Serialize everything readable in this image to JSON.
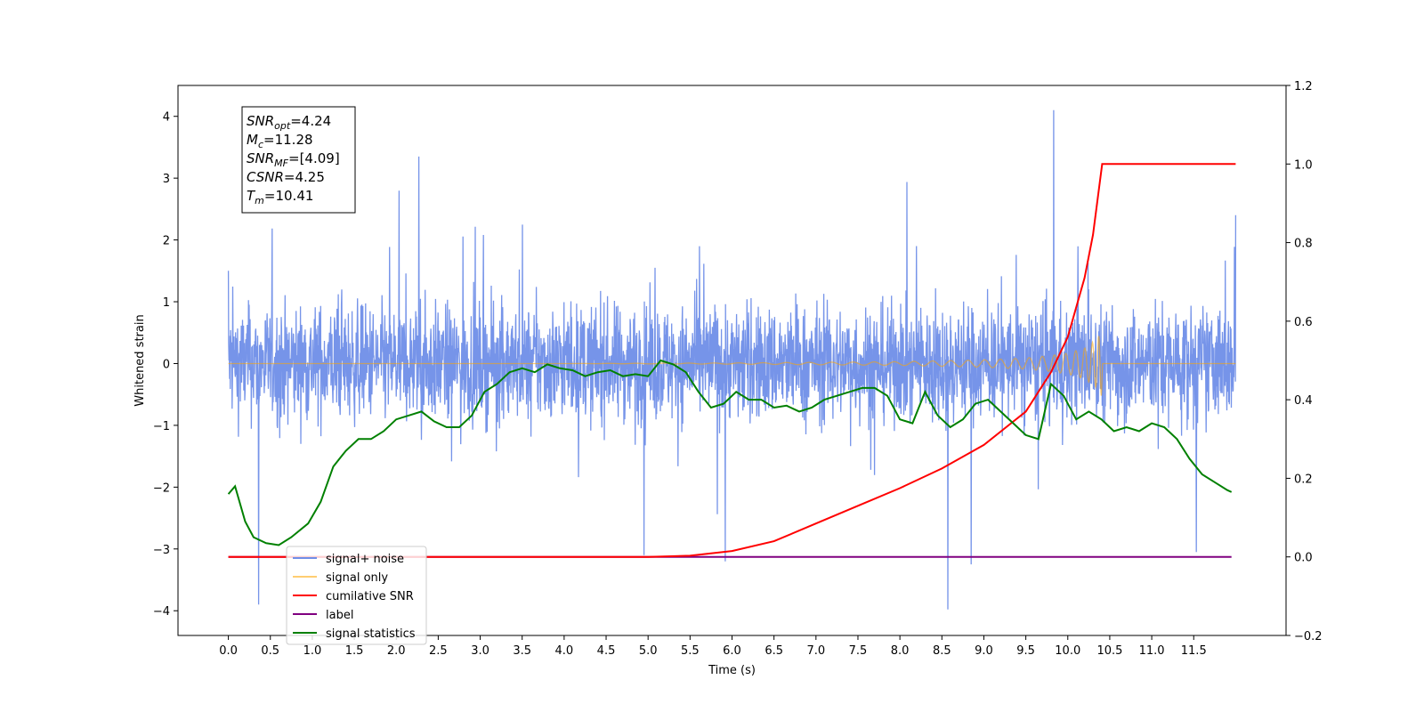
{
  "chart_data": {
    "type": "line",
    "xlabel": "Time (s)",
    "ylabel": "Whitened strain",
    "xlim": [
      -0.6,
      12.6
    ],
    "ylim": [
      -4.4,
      4.5
    ],
    "y2lim": [
      -0.2,
      1.2
    ],
    "x_ticks": [
      "0.0",
      "0.5",
      "1.0",
      "1.5",
      "2.0",
      "2.5",
      "3.0",
      "3.5",
      "4.0",
      "4.5",
      "5.0",
      "5.5",
      "6.0",
      "6.5",
      "7.0",
      "7.5",
      "8.0",
      "8.5",
      "9.0",
      "9.5",
      "10.0",
      "10.5",
      "11.0",
      "11.5"
    ],
    "y_ticks": [
      "4",
      "3",
      "2",
      "1",
      "0",
      "−1",
      "−2",
      "−3",
      "−4"
    ],
    "y2_ticks": [
      "1.2",
      "1.0",
      "0.8",
      "0.6",
      "0.4",
      "0.2",
      "0.0",
      "−0.2"
    ],
    "grid": false,
    "legend_position": "lower-left",
    "annotation": [
      {
        "base": "SNR",
        "sub": "opt",
        "value": "=4.24"
      },
      {
        "base": "M",
        "sub": "c",
        "value": "=11.28"
      },
      {
        "base": "SNR",
        "sub": "MF",
        "value": "=[4.09]"
      },
      {
        "base": "CSNR",
        "sub": "",
        "value": "=4.25"
      },
      {
        "base": "T",
        "sub": "m",
        "value": "=10.41"
      }
    ],
    "colors": {
      "signal_noise": "#6f8ee8",
      "signal_only": "#ffa500",
      "cumulative_snr": "#ff0000",
      "label": "#800080",
      "signal_statistics": "#008000"
    },
    "series": [
      {
        "name": "signal+ noise",
        "axis": "left",
        "sampling": "dense noise, approximately ±1.6 envelope with spikes",
        "x": [
          0.0,
          0.36,
          2.27,
          4.95,
          5.92,
          8.57,
          8.85,
          9.83,
          11.53,
          12.0
        ],
        "y": [
          1.5,
          -3.9,
          3.35,
          -3.1,
          -3.2,
          -3.98,
          -3.25,
          4.1,
          -3.05,
          2.4
        ]
      },
      {
        "name": "signal only",
        "axis": "left",
        "x": [
          0.0,
          4.0,
          6.0,
          8.0,
          9.0,
          9.5,
          9.8,
          10.0,
          10.2,
          10.35,
          10.41,
          12.0
        ],
        "y_envelope": [
          0.0,
          0.0,
          0.01,
          0.03,
          0.06,
          0.09,
          0.13,
          0.17,
          0.25,
          0.4,
          0.55,
          0.0
        ]
      },
      {
        "name": "cumilative SNR",
        "axis": "right",
        "x": [
          0.0,
          5.0,
          5.5,
          6.0,
          6.5,
          7.0,
          7.5,
          8.0,
          8.5,
          9.0,
          9.5,
          9.8,
          10.0,
          10.2,
          10.3,
          10.41,
          10.42,
          12.0
        ],
        "y": [
          0.0,
          0.0,
          0.003,
          0.015,
          0.04,
          0.085,
          0.13,
          0.175,
          0.225,
          0.285,
          0.37,
          0.47,
          0.56,
          0.71,
          0.82,
          1.0,
          1.0,
          1.0
        ]
      },
      {
        "name": "label",
        "axis": "right",
        "x": [
          0.0,
          11.95
        ],
        "y": [
          0.0,
          0.0
        ]
      },
      {
        "name": "signal statistics",
        "axis": "right",
        "x": [
          0.0,
          0.08,
          0.2,
          0.3,
          0.45,
          0.6,
          0.75,
          0.95,
          1.1,
          1.25,
          1.4,
          1.55,
          1.7,
          1.85,
          2.0,
          2.15,
          2.3,
          2.45,
          2.6,
          2.75,
          2.9,
          3.05,
          3.2,
          3.35,
          3.5,
          3.65,
          3.8,
          3.95,
          4.1,
          4.25,
          4.4,
          4.55,
          4.7,
          4.85,
          5.0,
          5.15,
          5.3,
          5.45,
          5.6,
          5.75,
          5.9,
          6.05,
          6.2,
          6.35,
          6.5,
          6.65,
          6.8,
          6.95,
          7.1,
          7.25,
          7.4,
          7.55,
          7.7,
          7.85,
          8.0,
          8.15,
          8.3,
          8.45,
          8.6,
          8.75,
          8.9,
          9.05,
          9.2,
          9.35,
          9.5,
          9.65,
          9.8,
          9.95,
          10.1,
          10.25,
          10.4,
          10.55,
          10.7,
          10.85,
          11.0,
          11.15,
          11.3,
          11.45,
          11.6,
          11.75,
          11.9,
          11.95
        ],
        "y": [
          0.16,
          0.18,
          0.09,
          0.05,
          0.035,
          0.03,
          0.05,
          0.085,
          0.14,
          0.23,
          0.27,
          0.3,
          0.3,
          0.32,
          0.35,
          0.36,
          0.37,
          0.345,
          0.33,
          0.33,
          0.36,
          0.42,
          0.44,
          0.47,
          0.48,
          0.47,
          0.49,
          0.48,
          0.475,
          0.46,
          0.47,
          0.475,
          0.46,
          0.465,
          0.46,
          0.5,
          0.49,
          0.47,
          0.42,
          0.38,
          0.39,
          0.42,
          0.4,
          0.4,
          0.38,
          0.385,
          0.37,
          0.38,
          0.4,
          0.41,
          0.42,
          0.43,
          0.43,
          0.41,
          0.35,
          0.34,
          0.42,
          0.36,
          0.33,
          0.35,
          0.39,
          0.4,
          0.37,
          0.34,
          0.31,
          0.3,
          0.44,
          0.41,
          0.35,
          0.37,
          0.35,
          0.32,
          0.33,
          0.32,
          0.34,
          0.33,
          0.3,
          0.25,
          0.21,
          0.19,
          0.17,
          0.165
        ]
      }
    ]
  }
}
